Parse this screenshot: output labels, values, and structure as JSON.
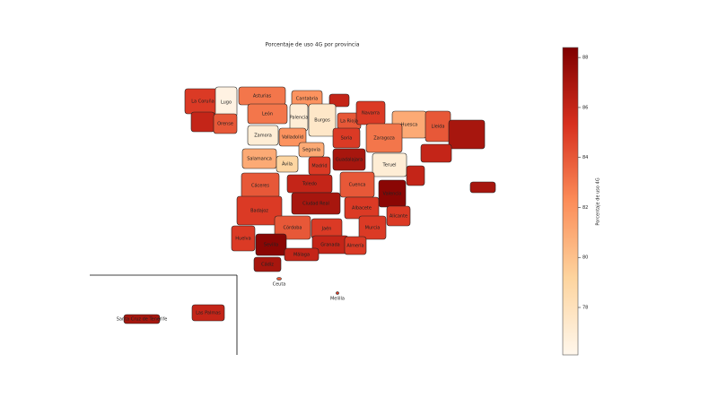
{
  "chart_data": {
    "type": "choropleth",
    "title": "Porcentaje de uso 4G por provincia",
    "colorbar_label": "Porcentaje de uso 4G",
    "clim": [
      76.1,
      88.4
    ],
    "colorbar_ticks": [
      78,
      80,
      82,
      84,
      86,
      88
    ],
    "colors": [
      "#fff7ec",
      "#fdd49e",
      "#fc8d59",
      "#d7301f",
      "#7f0000"
    ],
    "provinces": [
      {
        "name": "La Coruña",
        "value": 85
      },
      {
        "name": "Lugo",
        "value": 76.5
      },
      {
        "name": "Asturias",
        "value": 83
      },
      {
        "name": "Cantabria",
        "value": 82
      },
      {
        "name": null,
        "value": 86
      },
      {
        "name": null,
        "value": 86
      },
      {
        "name": "Orense",
        "value": 84
      },
      {
        "name": "León",
        "value": 83
      },
      {
        "name": "Palencia",
        "value": 77
      },
      {
        "name": "Burgos",
        "value": 77.5
      },
      {
        "name": "La Rioja",
        "value": 84
      },
      {
        "name": "Navarra",
        "value": 85
      },
      {
        "name": "Huesca",
        "value": 81
      },
      {
        "name": "Lleida",
        "value": 84
      },
      {
        "name": null,
        "value": 87
      },
      {
        "name": "Zamora",
        "value": 77
      },
      {
        "name": "Valladolid",
        "value": 82
      },
      {
        "name": "Soria",
        "value": 85
      },
      {
        "name": "Zaragoza",
        "value": 83
      },
      {
        "name": null,
        "value": 86
      },
      {
        "name": "Salamanca",
        "value": 81
      },
      {
        "name": "Ávila",
        "value": 79
      },
      {
        "name": "Segovia",
        "value": 81
      },
      {
        "name": "Madrid",
        "value": 85
      },
      {
        "name": "Guadalajara",
        "value": 87
      },
      {
        "name": "Teruel",
        "value": 77
      },
      {
        "name": null,
        "value": 86
      },
      {
        "name": "Cáceres",
        "value": 84
      },
      {
        "name": "Toledo",
        "value": 86
      },
      {
        "name": "Cuenca",
        "value": 84
      },
      {
        "name": "Valencia",
        "value": 88
      },
      {
        "name": "Badajoz",
        "value": 85
      },
      {
        "name": "Ciudad Real",
        "value": 87
      },
      {
        "name": "Albacete",
        "value": 85
      },
      {
        "name": "Alicante",
        "value": 85
      },
      {
        "name": "Córdoba",
        "value": 84
      },
      {
        "name": "Jaén",
        "value": 85
      },
      {
        "name": "Murcia",
        "value": 85
      },
      {
        "name": "Huelva",
        "value": 85
      },
      {
        "name": "Sevilla",
        "value": 88
      },
      {
        "name": "Granada",
        "value": 86
      },
      {
        "name": "Almería",
        "value": 85
      },
      {
        "name": "Málaga",
        "value": 86
      },
      {
        "name": "Cádiz",
        "value": 87
      },
      {
        "name": null,
        "value": 87
      },
      {
        "name": "Ceuta",
        "value": 84
      },
      {
        "name": "Melilla",
        "value": 85
      },
      {
        "name": "Santa Cruz de Tenerife",
        "value": 87
      },
      {
        "name": "Las Palmas",
        "value": 86
      }
    ]
  }
}
